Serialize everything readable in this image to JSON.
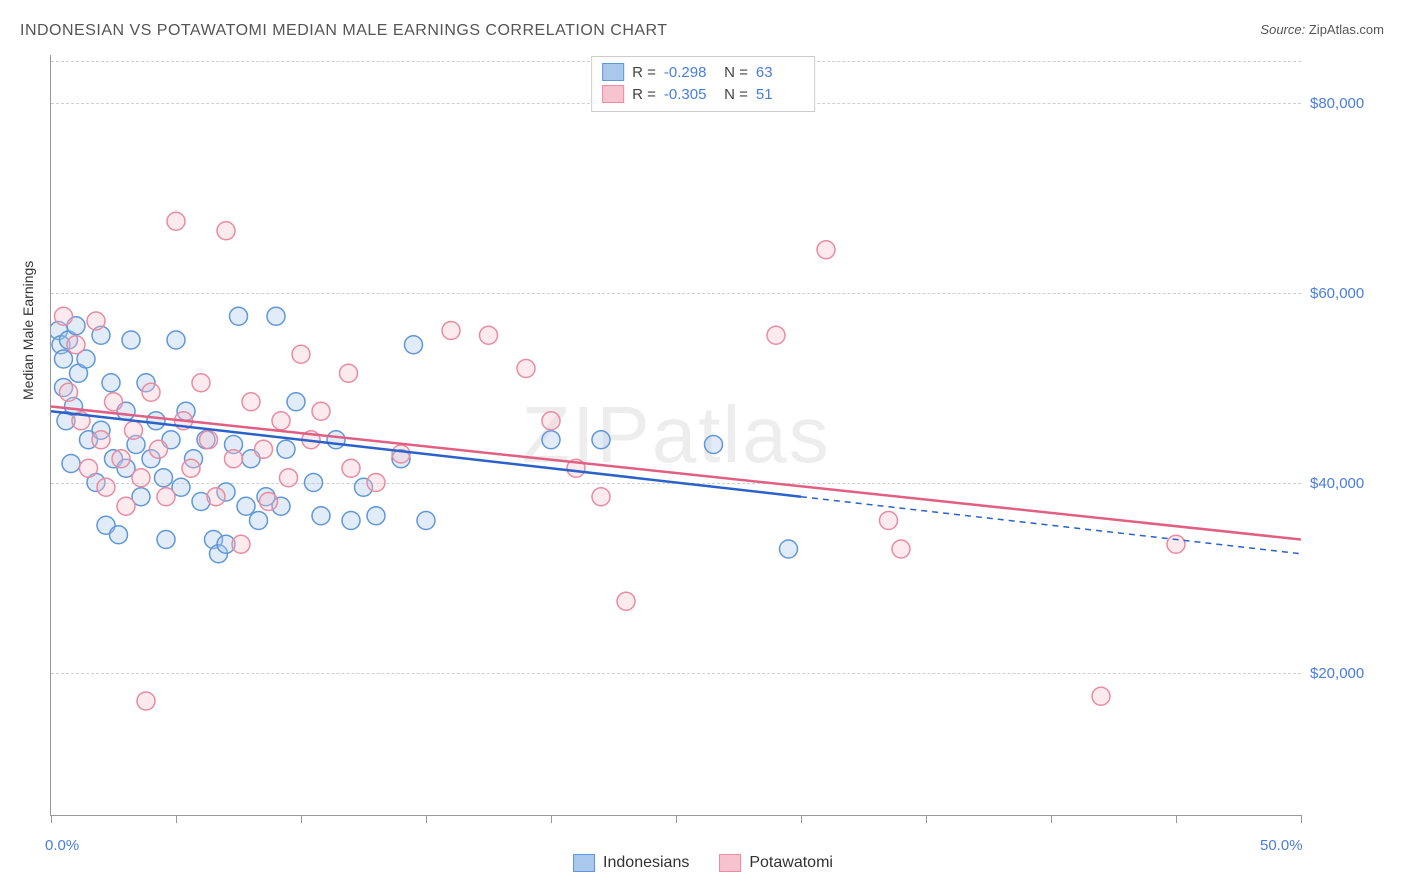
{
  "title": "INDONESIAN VS POTAWATOMI MEDIAN MALE EARNINGS CORRELATION CHART",
  "source_label": "Source:",
  "source_value": "ZipAtlas.com",
  "ylabel": "Median Male Earnings",
  "watermark": "ZIPatlas",
  "chart": {
    "type": "scatter",
    "background_color": "#ffffff",
    "grid_color": "#d0d0d0",
    "axis_color": "#999999",
    "text_color": "#333333",
    "tick_label_color": "#4a7ddb",
    "title_color": "#555555",
    "title_fontsize": 16,
    "label_fontsize": 14,
    "tick_fontsize": 15,
    "xlim": [
      0,
      50
    ],
    "ylim": [
      5000,
      85000
    ],
    "y_gridlines": [
      20000,
      40000,
      60000,
      80000
    ],
    "ytick_labels": [
      "$20,000",
      "$40,000",
      "$60,000",
      "$80,000"
    ],
    "xtick_positions": [
      0,
      5,
      10,
      15,
      20,
      25,
      30,
      35,
      40,
      45,
      50
    ],
    "xtick_labels": {
      "0": "0.0%",
      "50": "50.0%"
    },
    "marker_radius": 9,
    "marker_stroke_width": 1.5,
    "marker_fill_opacity": 0.35,
    "trend_line_width": 2.5,
    "series": [
      {
        "name": "Indonesians",
        "fill_color": "#a9c8ec",
        "stroke_color": "#5f97d8",
        "line_color": "#2a62c9",
        "R": "-0.298",
        "N": "63",
        "trend": {
          "x1": 0,
          "y1": 47500,
          "x2": 50,
          "y2": 32500,
          "solid_until_x": 30
        },
        "points": [
          [
            0.3,
            56000
          ],
          [
            0.4,
            54500
          ],
          [
            0.5,
            53000
          ],
          [
            0.5,
            50000
          ],
          [
            0.6,
            46500
          ],
          [
            0.7,
            55000
          ],
          [
            0.8,
            42000
          ],
          [
            0.9,
            48000
          ],
          [
            1.0,
            56500
          ],
          [
            1.1,
            51500
          ],
          [
            1.4,
            53000
          ],
          [
            1.5,
            44500
          ],
          [
            1.8,
            40000
          ],
          [
            2.0,
            55500
          ],
          [
            2.0,
            45500
          ],
          [
            2.2,
            35500
          ],
          [
            2.4,
            50500
          ],
          [
            2.5,
            42500
          ],
          [
            2.7,
            34500
          ],
          [
            3.0,
            47500
          ],
          [
            3.0,
            41500
          ],
          [
            3.2,
            55000
          ],
          [
            3.4,
            44000
          ],
          [
            3.6,
            38500
          ],
          [
            3.8,
            50500
          ],
          [
            4.0,
            42500
          ],
          [
            4.2,
            46500
          ],
          [
            4.5,
            40500
          ],
          [
            4.6,
            34000
          ],
          [
            4.8,
            44500
          ],
          [
            5.0,
            55000
          ],
          [
            5.2,
            39500
          ],
          [
            5.4,
            47500
          ],
          [
            5.7,
            42500
          ],
          [
            6.0,
            38000
          ],
          [
            6.2,
            44500
          ],
          [
            6.5,
            34000
          ],
          [
            6.7,
            32500
          ],
          [
            7.0,
            39000
          ],
          [
            7.0,
            33500
          ],
          [
            7.3,
            44000
          ],
          [
            7.5,
            57500
          ],
          [
            7.8,
            37500
          ],
          [
            8.0,
            42500
          ],
          [
            8.3,
            36000
          ],
          [
            8.6,
            38500
          ],
          [
            9.0,
            57500
          ],
          [
            9.2,
            37500
          ],
          [
            9.4,
            43500
          ],
          [
            9.8,
            48500
          ],
          [
            10.5,
            40000
          ],
          [
            10.8,
            36500
          ],
          [
            11.4,
            44500
          ],
          [
            12.0,
            36000
          ],
          [
            12.5,
            39500
          ],
          [
            13.0,
            36500
          ],
          [
            14.0,
            42500
          ],
          [
            14.5,
            54500
          ],
          [
            15.0,
            36000
          ],
          [
            20.0,
            44500
          ],
          [
            22.0,
            44500
          ],
          [
            26.5,
            44000
          ],
          [
            29.5,
            33000
          ]
        ]
      },
      {
        "name": "Potawatomi",
        "fill_color": "#f6c3ce",
        "stroke_color": "#e98ba1",
        "line_color": "#e15f83",
        "R": "-0.305",
        "N": "51",
        "trend": {
          "x1": 0,
          "y1": 48000,
          "x2": 50,
          "y2": 34000,
          "solid_until_x": 50
        },
        "points": [
          [
            0.5,
            57500
          ],
          [
            0.7,
            49500
          ],
          [
            1.0,
            54500
          ],
          [
            1.2,
            46500
          ],
          [
            1.5,
            41500
          ],
          [
            1.8,
            57000
          ],
          [
            2.0,
            44500
          ],
          [
            2.2,
            39500
          ],
          [
            2.5,
            48500
          ],
          [
            2.8,
            42500
          ],
          [
            3.0,
            37500
          ],
          [
            3.3,
            45500
          ],
          [
            3.6,
            40500
          ],
          [
            3.8,
            17000
          ],
          [
            4.0,
            49500
          ],
          [
            4.3,
            43500
          ],
          [
            4.6,
            38500
          ],
          [
            5.0,
            67500
          ],
          [
            5.3,
            46500
          ],
          [
            5.6,
            41500
          ],
          [
            6.0,
            50500
          ],
          [
            6.3,
            44500
          ],
          [
            6.6,
            38500
          ],
          [
            7.0,
            66500
          ],
          [
            7.3,
            42500
          ],
          [
            7.6,
            33500
          ],
          [
            8.0,
            48500
          ],
          [
            8.5,
            43500
          ],
          [
            8.7,
            38000
          ],
          [
            9.2,
            46500
          ],
          [
            9.5,
            40500
          ],
          [
            10.0,
            53500
          ],
          [
            10.4,
            44500
          ],
          [
            10.8,
            47500
          ],
          [
            11.9,
            51500
          ],
          [
            12.0,
            41500
          ],
          [
            13.0,
            40000
          ],
          [
            14.0,
            43000
          ],
          [
            16.0,
            56000
          ],
          [
            17.5,
            55500
          ],
          [
            19.0,
            52000
          ],
          [
            20.0,
            46500
          ],
          [
            21.0,
            41500
          ],
          [
            22.0,
            38500
          ],
          [
            23.0,
            27500
          ],
          [
            29.0,
            55500
          ],
          [
            31.0,
            64500
          ],
          [
            33.5,
            36000
          ],
          [
            34.0,
            33000
          ],
          [
            42.0,
            17500
          ],
          [
            45.0,
            33500
          ]
        ]
      }
    ]
  },
  "legend_bottom": [
    {
      "label": "Indonesians",
      "fill": "#a9c8ec",
      "stroke": "#5f97d8"
    },
    {
      "label": "Potawatomi",
      "fill": "#f6c3ce",
      "stroke": "#e98ba1"
    }
  ]
}
